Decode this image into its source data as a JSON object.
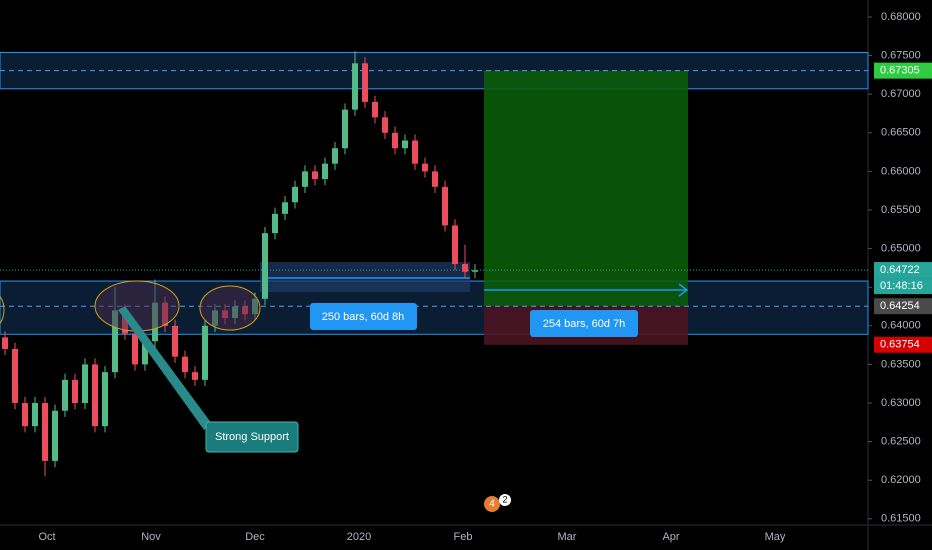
{
  "chart_data": {
    "type": "candlestick",
    "x_labels": [
      "Oct",
      "Nov",
      "Dec",
      "2020",
      "Feb",
      "Mar",
      "Apr",
      "May"
    ],
    "open": [
      0.6385,
      0.637,
      0.63,
      0.627,
      0.63,
      0.6225,
      0.629,
      0.633,
      0.63,
      0.635,
      0.627,
      0.634,
      0.642,
      0.639,
      0.635,
      0.638,
      0.643,
      0.64,
      0.636,
      0.634,
      0.633,
      0.64,
      0.642,
      0.641,
      0.6425,
      0.6415,
      0.6435,
      0.652,
      0.6545,
      0.656,
      0.658,
      0.66,
      0.659,
      0.661,
      0.663,
      0.668,
      0.674,
      0.669,
      0.667,
      0.665,
      0.663,
      0.664,
      0.661,
      0.66,
      0.658,
      0.653,
      0.648,
      0.647
    ],
    "high": [
      0.6393,
      0.6378,
      0.6308,
      0.6308,
      0.6308,
      0.6298,
      0.6338,
      0.6338,
      0.6358,
      0.6358,
      0.6348,
      0.645,
      0.6428,
      0.6398,
      0.6388,
      0.646,
      0.6438,
      0.6408,
      0.6368,
      0.6348,
      0.6408,
      0.6428,
      0.6428,
      0.6433,
      0.6433,
      0.6443,
      0.6528,
      0.6553,
      0.6568,
      0.6588,
      0.6608,
      0.6608,
      0.6618,
      0.6638,
      0.6688,
      0.6756,
      0.6748,
      0.6698,
      0.6678,
      0.6658,
      0.6648,
      0.6648,
      0.6618,
      0.6608,
      0.6588,
      0.6538,
      0.6505,
      0.648
    ],
    "low": [
      0.6362,
      0.6292,
      0.6262,
      0.6262,
      0.6205,
      0.6217,
      0.6282,
      0.6292,
      0.6292,
      0.6262,
      0.6262,
      0.6332,
      0.6382,
      0.6342,
      0.6342,
      0.6372,
      0.6392,
      0.6352,
      0.6332,
      0.6322,
      0.6322,
      0.6392,
      0.6402,
      0.6402,
      0.6407,
      0.6407,
      0.6427,
      0.6512,
      0.6537,
      0.6552,
      0.6572,
      0.6582,
      0.6582,
      0.6602,
      0.6622,
      0.6672,
      0.6682,
      0.6662,
      0.6642,
      0.6622,
      0.6622,
      0.6602,
      0.6592,
      0.6572,
      0.6522,
      0.6472,
      0.6462,
      0.6462
    ],
    "close": [
      0.637,
      0.63,
      0.627,
      0.63,
      0.6225,
      0.629,
      0.633,
      0.63,
      0.635,
      0.627,
      0.634,
      0.642,
      0.639,
      0.635,
      0.638,
      0.643,
      0.64,
      0.636,
      0.634,
      0.633,
      0.64,
      0.642,
      0.641,
      0.6425,
      0.6415,
      0.6435,
      0.652,
      0.6545,
      0.656,
      0.658,
      0.66,
      0.659,
      0.661,
      0.663,
      0.668,
      0.674,
      0.669,
      0.667,
      0.665,
      0.663,
      0.664,
      0.661,
      0.66,
      0.658,
      0.653,
      0.648,
      0.647,
      0.6472
    ],
    "up_color": "#53b987",
    "down_color": "#eb4d5c",
    "ylim": [
      0.6142,
      0.6822
    ],
    "yticks": [
      {
        "value": 0.68,
        "label": "0.68000"
      },
      {
        "value": 0.675,
        "label": "0.67500"
      },
      {
        "value": 0.67,
        "label": "0.67000"
      },
      {
        "value": 0.665,
        "label": "0.66500"
      },
      {
        "value": 0.66,
        "label": "0.66000"
      },
      {
        "value": 0.655,
        "label": "0.65500"
      },
      {
        "value": 0.65,
        "label": "0.65000"
      },
      {
        "value": 0.645,
        "label": "0.64500"
      },
      {
        "value": 0.64,
        "label": "0.64000"
      },
      {
        "value": 0.635,
        "label": "0.63500"
      },
      {
        "value": 0.63,
        "label": "0.63000"
      },
      {
        "value": 0.625,
        "label": "0.62500"
      },
      {
        "value": 0.62,
        "label": "0.62000"
      },
      {
        "value": 0.615,
        "label": "0.61500"
      }
    ],
    "zones": [
      {
        "top": 0.6754,
        "bottom": 0.6707
      },
      {
        "top": 0.6458,
        "bottom": 0.6389
      }
    ],
    "levels": [
      {
        "value": 0.67305,
        "label": "0.67305",
        "color": "#2ecc40",
        "line": "dashed"
      },
      {
        "value": 0.64722,
        "label": "0.64722",
        "color": "#26a69a",
        "line": "dotted"
      },
      {
        "value": 0.64254,
        "label": "0.64254",
        "color": "#4a4a4a",
        "line": "dashed"
      },
      {
        "value": 0.63754,
        "label": "0.63754",
        "color": "#d50000",
        "line": "none"
      }
    ],
    "countdown": "01:48:16",
    "measures": [
      "250 bars, 60d 8h",
      "254 bars, 60d 7h"
    ],
    "callout": "Strong Support",
    "event_badges": [
      "4",
      "2"
    ]
  }
}
